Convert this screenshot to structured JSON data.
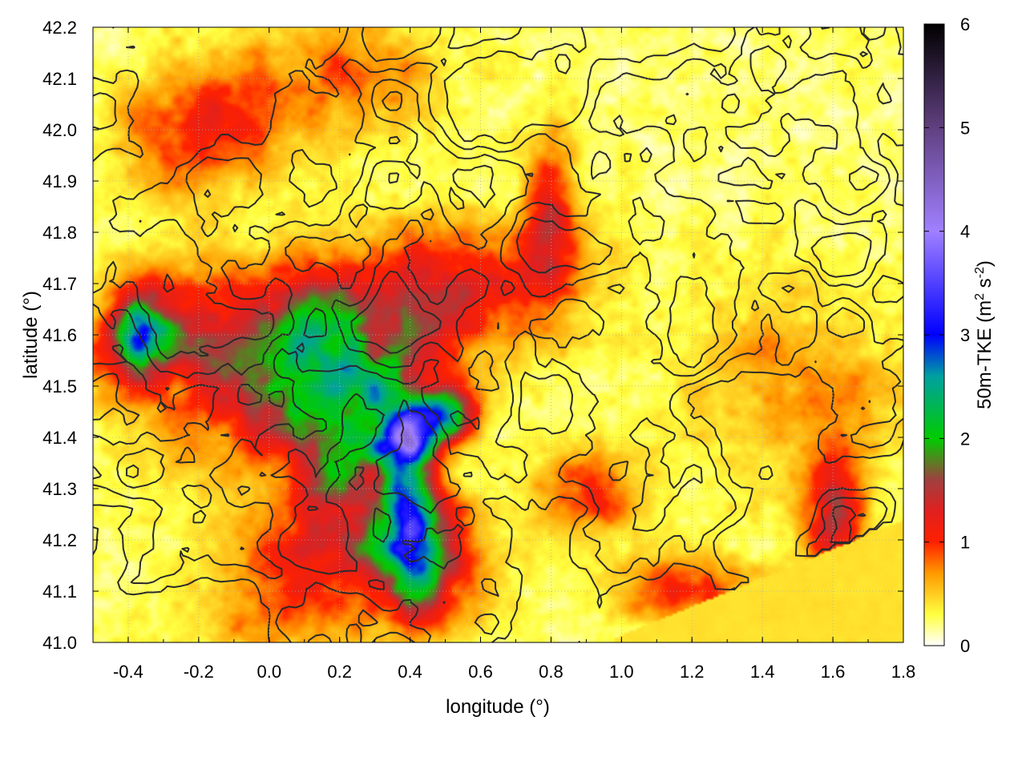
{
  "chart_data": {
    "type": "heatmap",
    "title": "",
    "xlabel": "longitude (°)",
    "ylabel": "latitude (°)",
    "xlim": [
      -0.5,
      1.8
    ],
    "ylim": [
      41.0,
      42.2
    ],
    "x_ticks": [
      -0.4,
      -0.2,
      0.0,
      0.2,
      0.4,
      0.6,
      0.8,
      1.0,
      1.2,
      1.4,
      1.6,
      1.8
    ],
    "x_tick_labels": [
      "-0.4",
      "-0.2",
      "0.0",
      "0.2",
      "0.4",
      "0.6",
      "0.8",
      "1.0",
      "1.2",
      "1.4",
      "1.6",
      "1.8"
    ],
    "y_ticks": [
      41.0,
      41.1,
      41.2,
      41.3,
      41.4,
      41.5,
      41.6,
      41.7,
      41.8,
      41.9,
      42.0,
      42.1,
      42.2
    ],
    "y_tick_labels": [
      "41.0",
      "41.1",
      "41.2",
      "41.3",
      "41.4",
      "41.5",
      "41.6",
      "41.7",
      "41.8",
      "41.9",
      "42.0",
      "42.1",
      "42.2"
    ],
    "grid": true,
    "colorbar": {
      "label_main": "50m-TKE (m",
      "label_sup1": "2",
      "label_mid": " s",
      "label_sup2": "-2",
      "label_end": ")",
      "range": [
        0,
        6
      ],
      "ticks": [
        0,
        1,
        2,
        3,
        4,
        5,
        6
      ],
      "tick_labels": [
        "0",
        "1",
        "2",
        "3",
        "4",
        "5",
        "6"
      ],
      "colors": [
        {
          "v": 0.0,
          "c": "#ffffff"
        },
        {
          "v": 0.3,
          "c": "#ffff40"
        },
        {
          "v": 0.7,
          "c": "#ff9900"
        },
        {
          "v": 1.0,
          "c": "#ff2000"
        },
        {
          "v": 1.3,
          "c": "#e02020"
        },
        {
          "v": 1.6,
          "c": "#a04040"
        },
        {
          "v": 2.0,
          "c": "#00cc00"
        },
        {
          "v": 2.6,
          "c": "#00a0a0"
        },
        {
          "v": 3.0,
          "c": "#0000ff"
        },
        {
          "v": 4.0,
          "c": "#a080ff"
        },
        {
          "v": 5.0,
          "c": "#604080"
        },
        {
          "v": 6.0,
          "c": "#000000"
        }
      ]
    },
    "field_blobs": [
      {
        "x": -0.35,
        "y": 41.6,
        "sx": 0.08,
        "sy": 0.06,
        "a": 2.2
      },
      {
        "x": -0.05,
        "y": 41.55,
        "sx": 0.25,
        "sy": 0.12,
        "a": 1.2
      },
      {
        "x": 0.25,
        "y": 41.55,
        "sx": 0.15,
        "sy": 0.12,
        "a": 1.4
      },
      {
        "x": 0.4,
        "y": 41.3,
        "sx": 0.05,
        "sy": 0.1,
        "a": 2.6
      },
      {
        "x": 0.35,
        "y": 41.4,
        "sx": 0.06,
        "sy": 0.04,
        "a": 2.0
      },
      {
        "x": 0.5,
        "y": 41.45,
        "sx": 0.06,
        "sy": 0.04,
        "a": 1.8
      },
      {
        "x": 0.45,
        "y": 41.15,
        "sx": 0.1,
        "sy": 0.08,
        "a": 1.6
      },
      {
        "x": 0.6,
        "y": 41.7,
        "sx": 0.2,
        "sy": 0.08,
        "a": 1.1
      },
      {
        "x": 0.2,
        "y": 41.3,
        "sx": 0.1,
        "sy": 0.1,
        "a": 1.2
      },
      {
        "x": -0.2,
        "y": 42.0,
        "sx": 0.15,
        "sy": 0.08,
        "a": 0.9
      },
      {
        "x": 0.1,
        "y": 41.1,
        "sx": 0.2,
        "sy": 0.1,
        "a": 0.7
      },
      {
        "x": 1.6,
        "y": 41.25,
        "sx": 0.06,
        "sy": 0.08,
        "a": 1.1
      },
      {
        "x": 1.2,
        "y": 41.1,
        "sx": 0.15,
        "sy": 0.05,
        "a": 0.8
      },
      {
        "x": 0.8,
        "y": 41.85,
        "sx": 0.05,
        "sy": 0.1,
        "a": 0.8
      },
      {
        "x": 0.9,
        "y": 41.3,
        "sx": 0.1,
        "sy": 0.06,
        "a": 0.8
      },
      {
        "x": 1.5,
        "y": 41.5,
        "sx": 0.2,
        "sy": 0.15,
        "a": 0.5
      },
      {
        "x": 0.2,
        "y": 42.1,
        "sx": 0.2,
        "sy": 0.08,
        "a": 0.6
      }
    ]
  }
}
